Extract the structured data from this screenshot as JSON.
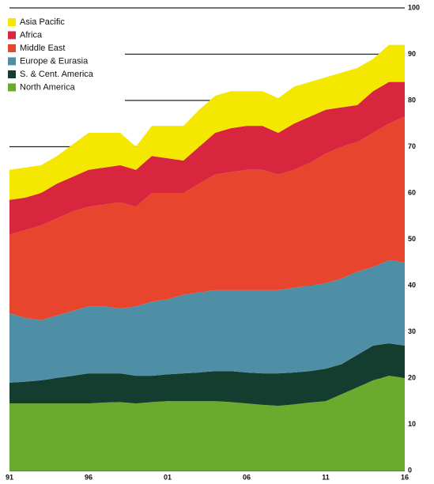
{
  "chart_data": {
    "type": "stacked_area",
    "x": [
      1991,
      1992,
      1993,
      1994,
      1995,
      1996,
      1997,
      1998,
      1999,
      2000,
      2001,
      2002,
      2003,
      2004,
      2005,
      2006,
      2007,
      2008,
      2009,
      2010,
      2011,
      2012,
      2013,
      2014,
      2015,
      2016
    ],
    "xlim": [
      1991,
      2016
    ],
    "xticks": [
      {
        "value": 1991,
        "label": "91"
      },
      {
        "value": 1996,
        "label": "96"
      },
      {
        "value": 2001,
        "label": "01"
      },
      {
        "value": 2006,
        "label": "06"
      },
      {
        "value": 2011,
        "label": "11"
      },
      {
        "value": 2016,
        "label": "16"
      }
    ],
    "ylim": [
      0,
      100
    ],
    "yticks": [
      0,
      10,
      20,
      30,
      40,
      50,
      60,
      70,
      80,
      90,
      100
    ],
    "grid": true,
    "legend": "top-left",
    "series": [
      {
        "name": "North America",
        "color": "#6aab2e",
        "values": [
          14.5,
          14.5,
          14.5,
          14.5,
          14.5,
          14.5,
          14.7,
          14.8,
          14.5,
          14.8,
          15,
          15,
          15,
          15,
          14.8,
          14.5,
          14.2,
          14,
          14.3,
          14.7,
          15,
          16.5,
          18,
          19.5,
          20.5,
          20
        ]
      },
      {
        "name": "S. & Cent. America",
        "color": "#153d2f",
        "values": [
          4.5,
          4.7,
          5,
          5.5,
          6,
          6.5,
          6.3,
          6.2,
          6,
          5.7,
          5.8,
          6,
          6.2,
          6.5,
          6.7,
          6.7,
          6.8,
          7,
          6.9,
          6.8,
          7,
          6.5,
          7,
          7.5,
          7,
          7
        ]
      },
      {
        "name": "Europe & Eurasia",
        "color": "#4f8fa6",
        "values": [
          15,
          13.8,
          13,
          13.5,
          14,
          14.5,
          14.5,
          14,
          15,
          16,
          16.2,
          17,
          17.3,
          17.5,
          17.5,
          17.8,
          18,
          18,
          18.3,
          18.5,
          18.5,
          18.5,
          18,
          17,
          18,
          18
        ]
      },
      {
        "name": "Middle East",
        "color": "#e8452e",
        "values": [
          17,
          19,
          20.5,
          21,
          21.5,
          21.5,
          22,
          23,
          21.5,
          23.5,
          23,
          22,
          23.5,
          25,
          25.5,
          26,
          26,
          25,
          25.5,
          26.5,
          28,
          28.5,
          28,
          29,
          29.5,
          31.5
        ]
      },
      {
        "name": "Africa",
        "color": "#d7263d",
        "values": [
          7.5,
          7,
          7,
          7.5,
          7.5,
          8,
          8,
          8,
          8,
          8,
          7.5,
          7,
          8,
          9,
          9.5,
          9.5,
          9.5,
          9,
          10,
          10,
          9.5,
          8.5,
          8,
          9,
          9,
          7.5
        ]
      },
      {
        "name": "Asia Pacific",
        "color": "#f5e800",
        "values": [
          6.5,
          6.5,
          6,
          6,
          7,
          8,
          7.5,
          7,
          5,
          6.5,
          7,
          7.5,
          8,
          8,
          8,
          7.5,
          7.5,
          7.5,
          8,
          7.5,
          7,
          7.5,
          8,
          7,
          8,
          8
        ]
      }
    ]
  }
}
